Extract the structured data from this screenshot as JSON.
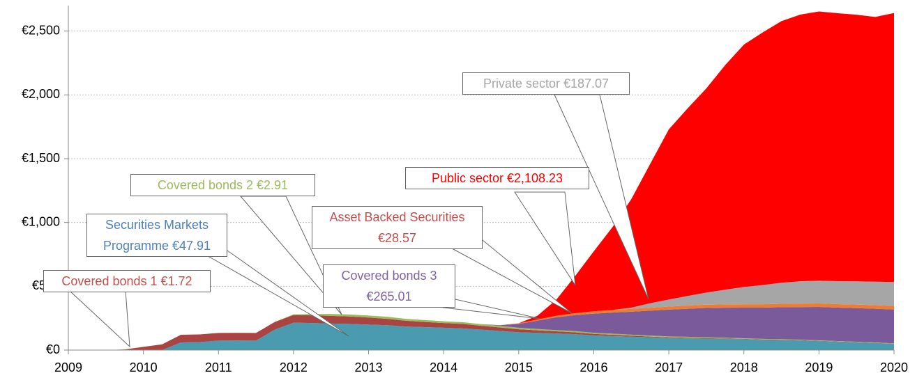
{
  "chart_data": {
    "type": "stacked_area",
    "x": [
      2009,
      2009.25,
      2009.5,
      2009.75,
      2010,
      2010.25,
      2010.5,
      2010.75,
      2011,
      2011.25,
      2011.5,
      2011.75,
      2012,
      2012.25,
      2012.5,
      2012.75,
      2013,
      2013.25,
      2013.5,
      2013.75,
      2014,
      2014.25,
      2014.5,
      2014.75,
      2015,
      2015.25,
      2015.5,
      2015.75,
      2016,
      2016.25,
      2016.5,
      2016.75,
      2017,
      2017.25,
      2017.5,
      2017.75,
      2018,
      2018.25,
      2018.5,
      2018.75,
      2019,
      2019.25,
      2019.5,
      2019.75,
      2020
    ],
    "series": [
      {
        "name": "Securities Markets Programme",
        "color": "#4a9bb0",
        "values": [
          0,
          0,
          0,
          0,
          0,
          0,
          60,
          63,
          74,
          75,
          74,
          160,
          215,
          212,
          208,
          205,
          200,
          195,
          185,
          180,
          175,
          170,
          160,
          150,
          140,
          135,
          130,
          125,
          115,
          110,
          105,
          100,
          95,
          92,
          90,
          87,
          85,
          80,
          78,
          75,
          70,
          65,
          60,
          55,
          47.91
        ]
      },
      {
        "name": "Covered bonds 1",
        "color": "#a94442",
        "values": [
          0,
          0,
          0,
          5,
          25,
          45,
          60,
          60,
          60,
          60,
          60,
          60,
          60,
          60,
          60,
          58,
          55,
          50,
          45,
          40,
          37,
          35,
          30,
          27,
          23,
          20,
          17,
          14,
          12,
          10,
          8,
          6,
          5,
          5,
          4,
          4,
          3,
          3,
          3,
          3,
          2.5,
          2.3,
          2.1,
          1.9,
          1.72
        ]
      },
      {
        "name": "Covered bonds 2",
        "color": "#9bbb59",
        "values": [
          0,
          0,
          0,
          0,
          0,
          0,
          0,
          0,
          0,
          0,
          0,
          0,
          5,
          10,
          15,
          16,
          16,
          16,
          15,
          15,
          14,
          14,
          13,
          13,
          12,
          11,
          10,
          10,
          9,
          9,
          8,
          8,
          7,
          7,
          6,
          6,
          5,
          5,
          5,
          4,
          4,
          3.5,
          3.2,
          3,
          2.91
        ]
      },
      {
        "name": "Covered bonds 3",
        "color": "#7a5a9a",
        "values": [
          0,
          0,
          0,
          0,
          0,
          0,
          0,
          0,
          0,
          0,
          0,
          0,
          0,
          0,
          0,
          0,
          0,
          0,
          0,
          0,
          0,
          0,
          0,
          5,
          30,
          65,
          100,
          125,
          150,
          165,
          180,
          195,
          210,
          220,
          230,
          235,
          240,
          245,
          250,
          255,
          262,
          262,
          263,
          264,
          265.01
        ]
      },
      {
        "name": "Asset Backed Securities",
        "color": "#f07c30",
        "values": [
          0,
          0,
          0,
          0,
          0,
          0,
          0,
          0,
          0,
          0,
          0,
          0,
          0,
          0,
          0,
          0,
          0,
          0,
          0,
          0,
          0,
          0,
          0,
          1,
          5,
          8,
          12,
          15,
          18,
          20,
          22,
          23,
          24,
          25,
          26,
          26,
          26,
          26,
          27,
          27,
          27,
          27,
          28,
          28,
          28.57
        ]
      },
      {
        "name": "Private sector",
        "color": "#a6a6a6",
        "values": [
          0,
          0,
          0,
          0,
          0,
          0,
          0,
          0,
          0,
          0,
          0,
          0,
          0,
          0,
          0,
          0,
          0,
          0,
          0,
          0,
          0,
          0,
          0,
          0,
          0,
          0,
          0,
          0,
          0,
          0,
          10,
          35,
          55,
          75,
          95,
          115,
          135,
          150,
          165,
          175,
          178,
          180,
          182,
          184,
          187.07
        ]
      },
      {
        "name": "Public sector",
        "color": "#ff0000",
        "values": [
          0,
          0,
          0,
          0,
          0,
          0,
          0,
          0,
          0,
          0,
          0,
          0,
          0,
          0,
          0,
          0,
          0,
          0,
          0,
          0,
          0,
          0,
          0,
          0,
          0,
          30,
          125,
          290,
          470,
          650,
          850,
          1090,
          1334,
          1470,
          1600,
          1760,
          1900,
          1980,
          2050,
          2090,
          2110,
          2100,
          2090,
          2075,
          2108.23
        ]
      }
    ],
    "xlim": [
      2009,
      2020
    ],
    "xticks": [
      2009,
      2010,
      2011,
      2012,
      2013,
      2014,
      2015,
      2016,
      2017,
      2018,
      2019,
      2020
    ],
    "ylim": [
      0,
      2700
    ],
    "yticks": [
      {
        "value": 0,
        "label": "€0"
      },
      {
        "value": 500,
        "label": "€500"
      },
      {
        "value": 1000,
        "label": "€1,000"
      },
      {
        "value": 1500,
        "label": "€1,500"
      },
      {
        "value": 2000,
        "label": "€2,000"
      },
      {
        "value": 2500,
        "label": "€2,500"
      }
    ],
    "grid": true,
    "annotations": [
      {
        "text": "Covered bonds 1 €1.72",
        "color": "#c0504d"
      },
      {
        "text": "Securities Markets Programme €47.91",
        "color": "#4f81bd"
      },
      {
        "text": "Covered bonds 2 €2.91",
        "color": "#9bbb59"
      },
      {
        "text": "Asset Backed Securities €28.57",
        "color": "#c0504d"
      },
      {
        "text": "Covered bonds 3 €265.01",
        "color": "#8064a2"
      },
      {
        "text": "Public sector €2,108.23",
        "color": "#ff0000"
      },
      {
        "text": "Private sector €187.07",
        "color": "#a6a6a6"
      }
    ]
  }
}
